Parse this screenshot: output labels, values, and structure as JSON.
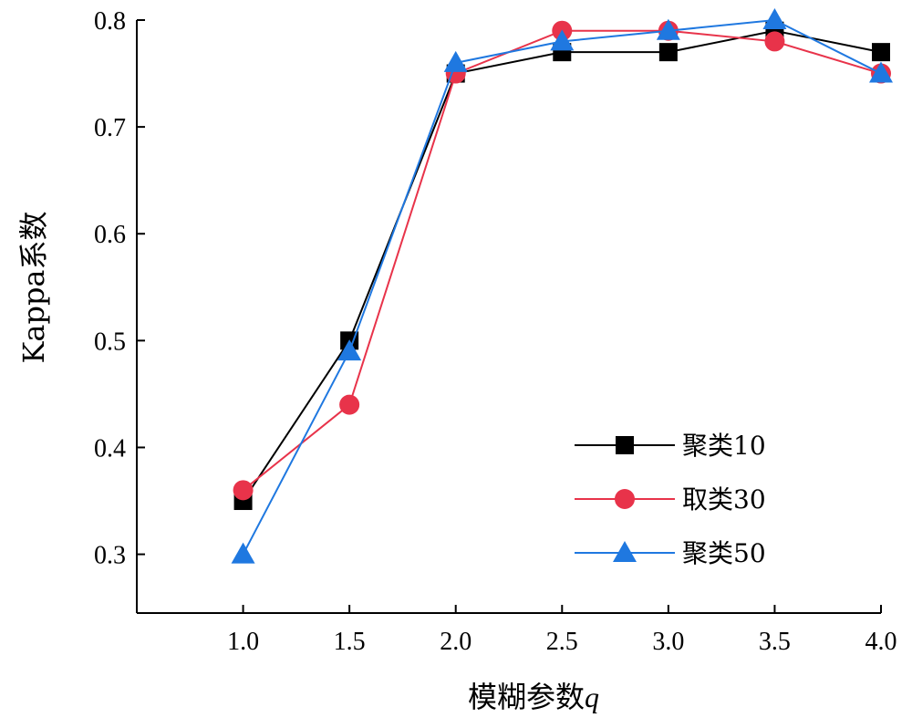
{
  "chart_data": {
    "type": "line",
    "xlabel": "模糊参数",
    "xlabel_var": "q",
    "ylabel": "Kappa系数",
    "x": [
      1.0,
      1.5,
      2.0,
      2.5,
      3.0,
      3.5,
      4.0
    ],
    "x_tick_labels": [
      "1.0",
      "1.5",
      "2.0",
      "2.5",
      "3.0",
      "3.5",
      "4.0"
    ],
    "y_ticks": [
      0.3,
      0.4,
      0.5,
      0.6,
      0.7,
      0.8
    ],
    "y_tick_labels": [
      "0.3",
      "0.4",
      "0.5",
      "0.6",
      "0.7",
      "0.8"
    ],
    "xlim": [
      0.5,
      4.0
    ],
    "ylim": [
      0.245,
      0.8
    ],
    "grid": false,
    "legend_position": "right",
    "series": [
      {
        "name": "聚类10",
        "color": "#000000",
        "marker": "square",
        "values": [
          0.35,
          0.5,
          0.75,
          0.77,
          0.77,
          0.79,
          0.77
        ]
      },
      {
        "name": "取类30",
        "color": "#e8334a",
        "marker": "circle",
        "values": [
          0.36,
          0.44,
          0.75,
          0.79,
          0.79,
          0.78,
          0.75
        ]
      },
      {
        "name": "聚类50",
        "color": "#1f78e0",
        "marker": "triangle",
        "values": [
          0.3,
          0.49,
          0.76,
          0.78,
          0.79,
          0.8,
          0.75
        ]
      }
    ]
  }
}
